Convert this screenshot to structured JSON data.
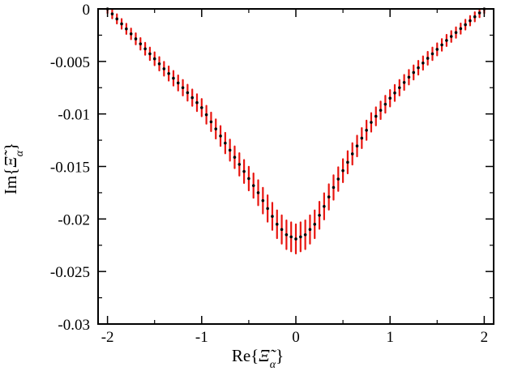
{
  "chart_data": {
    "type": "scatter",
    "title": "",
    "xlabel": "Re{Ξ̃α}",
    "ylabel": "Im{Ξ̃α}",
    "xlim": [
      -2.1,
      2.1
    ],
    "ylim": [
      -0.03,
      0
    ],
    "x_ticks": [
      -2,
      -1,
      0,
      1,
      2
    ],
    "x_tick_labels": [
      "-2",
      "-1",
      "0",
      "1",
      "2"
    ],
    "y_ticks": [
      0,
      -0.005,
      -0.01,
      -0.015,
      -0.02,
      -0.025,
      -0.03
    ],
    "y_tick_labels": [
      "0",
      "-0.005",
      "-0.01",
      "-0.015",
      "-0.02",
      "-0.025",
      "-0.03"
    ],
    "grid": false,
    "legend": "none",
    "series": [
      {
        "color": "#000000",
        "marker": "dot",
        "x": [
          -2.0,
          -1.8,
          -1.6,
          -1.4,
          -1.2,
          -1.0,
          -0.8,
          -0.6,
          -0.4,
          -0.3,
          -0.2,
          -0.1,
          0.0,
          0.1,
          0.2,
          0.3,
          0.4,
          0.6,
          0.8,
          1.0,
          1.2,
          1.4,
          1.6,
          1.8,
          2.0
        ],
        "y": [
          0.0,
          -0.0019,
          -0.0038,
          -0.0057,
          -0.0075,
          -0.0094,
          -0.0121,
          -0.0148,
          -0.0175,
          -0.019,
          -0.0205,
          -0.0215,
          -0.0219,
          -0.0215,
          -0.0205,
          -0.0188,
          -0.017,
          -0.0138,
          -0.0108,
          -0.0085,
          -0.0065,
          -0.0047,
          -0.003,
          -0.0015,
          0.0
        ]
      },
      {
        "color": "#e8150f",
        "marker": "vertical-spread"
      }
    ]
  }
}
